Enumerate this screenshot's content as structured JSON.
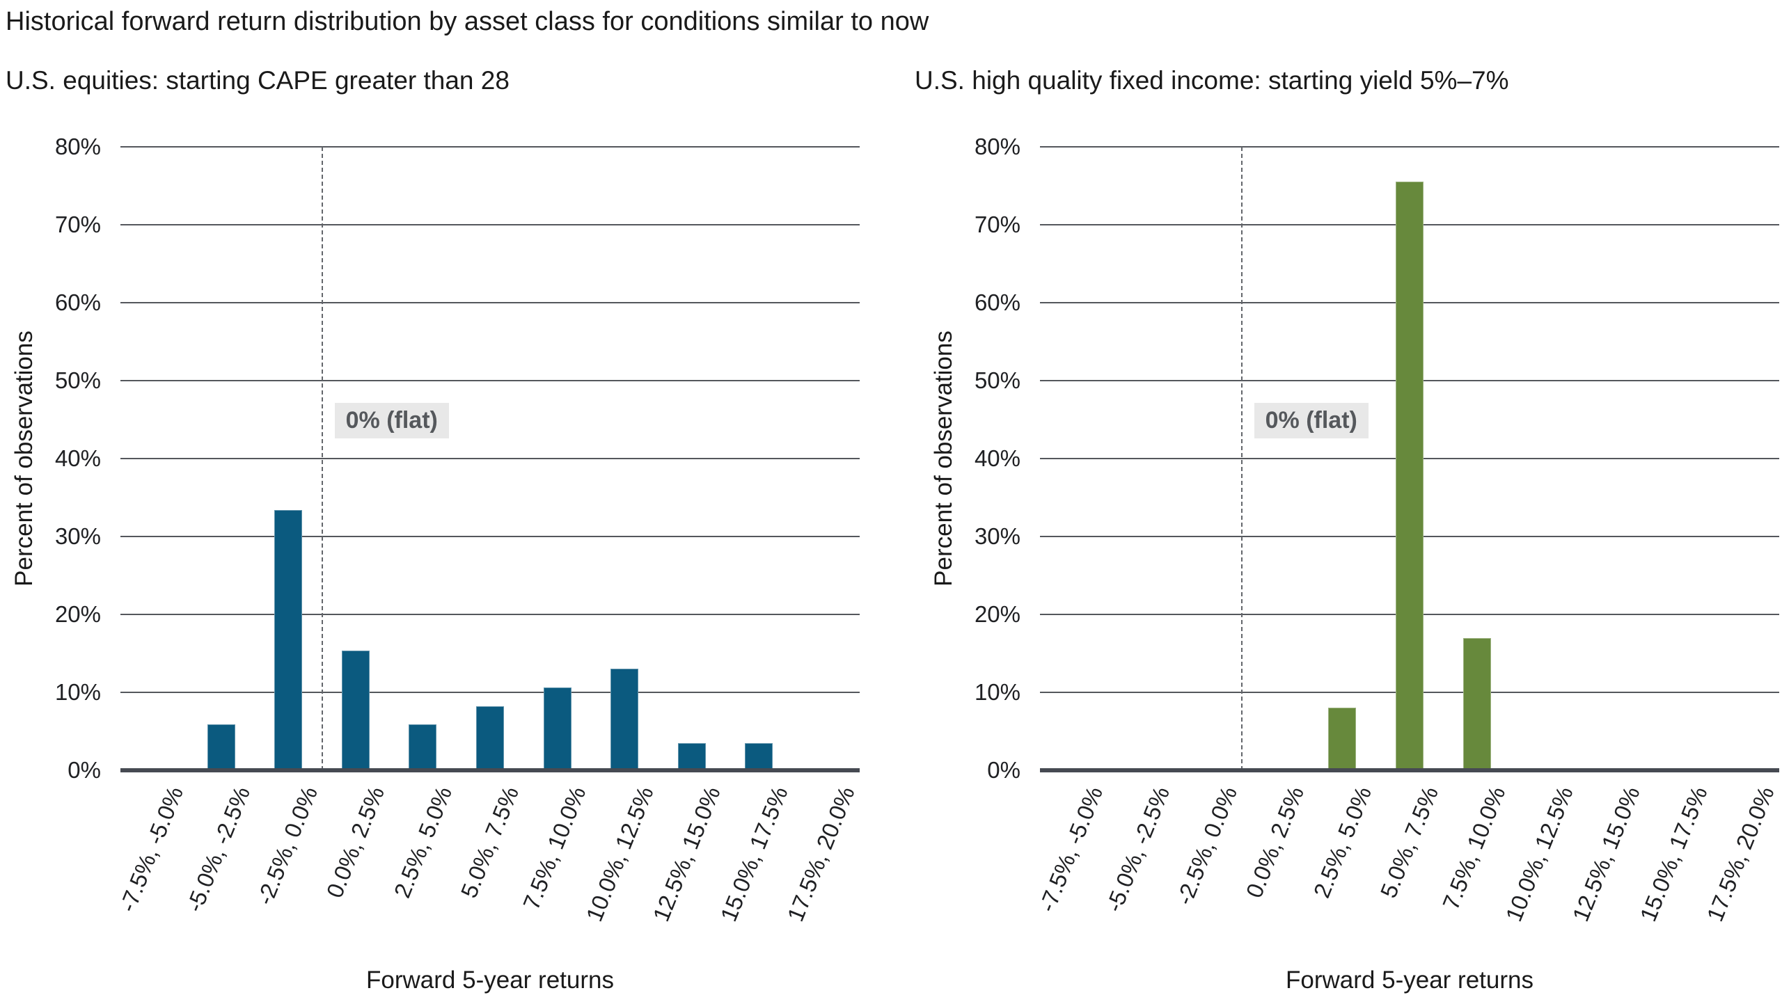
{
  "title": "Historical forward return distribution by asset class for conditions similar to now",
  "style": {
    "gridline_color": "#54575c",
    "axis_color": "#464a52",
    "zero_line_color": "#63666b",
    "annotation_bg": "#e8e8e8",
    "annotation_text": "#55585c",
    "text_color": "#1a1a1a",
    "equities_bar_color": "#0b5a7f",
    "fixed_income_bar_color": "#67893c"
  },
  "chart_data": [
    {
      "type": "bar",
      "title": "U.S. equities: starting CAPE greater than 28",
      "xlabel": "Forward 5-year returns",
      "ylabel": "Percent of observations",
      "ylim": [
        0,
        80
      ],
      "ytick_step": 10,
      "ytick_suffix": "%",
      "grid": true,
      "legend": "none",
      "bar_color": "#0b5a7f",
      "annotation": "0% (flat)",
      "zero_line_style": "dashed",
      "zero_line_boundary_index": 3,
      "categories": [
        "-7.5%, -5.0%",
        "-5.0%, -2.5%",
        "-2.5%, 0.0%",
        "0.0%, 2.5%",
        "2.5%, 5.0%",
        "5.0%, 7.5%",
        "7.5%, 10.0%",
        "10.0%, 12.5%",
        "12.5%, 15.0%",
        "15.0%, 17.5%",
        "17.5%, 20.0%"
      ],
      "values": [
        0,
        5.9,
        33.4,
        15.4,
        5.9,
        8.2,
        10.6,
        13.0,
        3.5,
        3.5,
        0
      ]
    },
    {
      "type": "bar",
      "title": "U.S. high quality fixed income: starting yield 5%–7%",
      "xlabel": "Forward 5-year returns",
      "ylabel": "Percent of observations",
      "ylim": [
        0,
        80
      ],
      "ytick_step": 10,
      "ytick_suffix": "%",
      "grid": true,
      "legend": "none",
      "bar_color": "#67893c",
      "annotation": "0% (flat)",
      "zero_line_style": "dashed",
      "zero_line_boundary_index": 3,
      "categories": [
        "-7.5%, -5.0%",
        "-5.0%, -2.5%",
        "-2.5%, 0.0%",
        "0.0%, 2.5%",
        "2.5%, 5.0%",
        "5.0%, 7.5%",
        "7.5%, 10.0%",
        "10.0%, 12.5%",
        "12.5%, 15.0%",
        "15.0%, 17.5%",
        "17.5%, 20.0%"
      ],
      "values": [
        0,
        0,
        0,
        0,
        8.0,
        75.5,
        17.0,
        0,
        0,
        0,
        0
      ]
    }
  ]
}
